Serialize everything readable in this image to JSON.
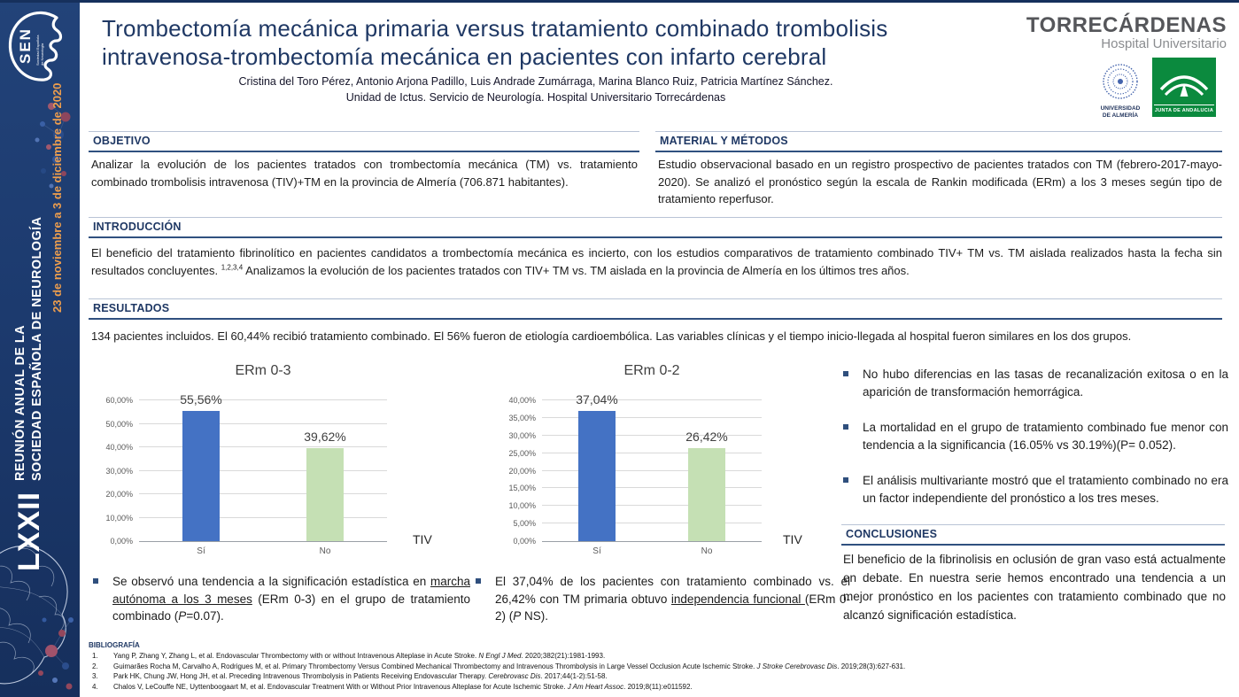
{
  "chart_data": [
    {
      "type": "bar",
      "title": "ERm 0-3",
      "categories": [
        "Sí",
        "No"
      ],
      "values": [
        55.56,
        39.62
      ],
      "value_labels": [
        "55,56%",
        "39,62%"
      ],
      "bar_colors": [
        "#4472C4",
        "#C5E0B4"
      ],
      "ylim": [
        0,
        60
      ],
      "ytick_labels": [
        "0,00%",
        "10,00%",
        "20,00%",
        "30,00%",
        "40,00%",
        "50,00%",
        "60,00%"
      ],
      "xlabel": "TIV",
      "grid": true,
      "legend": "none"
    },
    {
      "type": "bar",
      "title": "ERm 0-2",
      "categories": [
        "Sí",
        "No"
      ],
      "values": [
        37.04,
        26.42
      ],
      "value_labels": [
        "37,04%",
        "26,42%"
      ],
      "bar_colors": [
        "#4472C4",
        "#C5E0B4"
      ],
      "ylim": [
        0,
        40
      ],
      "ytick_labels": [
        "0,00%",
        "5,00%",
        "10,00%",
        "15,00%",
        "20,00%",
        "25,00%",
        "30,00%",
        "35,00%",
        "40,00%"
      ],
      "xlabel": "TIV",
      "grid": true,
      "legend": "none"
    }
  ],
  "sidebar": {
    "sen_acronym": "SEN",
    "sen_name_line1": "Sociedad Española",
    "sen_name_line2": "de Neurología",
    "event_numeral": "LXXII",
    "event_line1": "REUNIÓN ANUAL DE LA",
    "event_line2": "SOCIEDAD ESPAÑOLA DE NEUROLOGÍA",
    "event_dates": "23 de noviembre a 3 de diciembre de 2020",
    "colors": {
      "background": "#1d3c70",
      "dates_text": "#ee9e4d"
    }
  },
  "header": {
    "title_line1": "Trombectomía mecánica primaria versus tratamiento combinado trombolisis",
    "title_line2": "intravenosa-trombectomía mecánica en pacientes con infarto cerebral",
    "authors": "Cristina del Toro Pérez, Antonio Arjona Padillo, Luis Andrade Zumárraga, Marina Blanco Ruiz, Patricia Martínez Sánchez.",
    "affiliation": "Unidad de Ictus. Servicio de Neurología. Hospital Universitario Torrecárdenas",
    "brand_name": "TORRECÁRDENAS",
    "brand_subtitle": "Hospital Universitario",
    "ual_caption_line1": "UNIVERSIDAD",
    "ual_caption_line2": "DE ALMERÍA",
    "junta_caption": "JUNTA DE ANDALUCIA"
  },
  "sections": {
    "objetivo_title": "OBJETIVO",
    "objetivo_body": "Analizar la evolución de los pacientes tratados con trombectomía mecánica (TM) vs. tratamiento combinado trombolisis intravenosa (TIV)+TM en la provincia de Almería (706.871 habitantes).",
    "metodos_title": "MATERIAL Y MÉTODOS",
    "metodos_body": "Estudio observacional basado en un registro prospectivo de pacientes tratados con TM (febrero-2017-mayo-2020). Se analizó el pronóstico según la escala de Rankin modificada (ERm) a los 3 meses según tipo de tratamiento reperfusor.",
    "intro_title": "INTRODUCCIÓN",
    "intro_body_pre": "El beneficio del tratamiento fibrinolítico en pacientes candidatos a trombectomía mecánica es incierto, con los estudios comparativos de tratamiento combinado TIV+ TM vs. TM aislada realizados hasta la fecha sin resultados concluyentes. ",
    "intro_citation": "1,2,3,4",
    "intro_body_post": " Analizamos la evolución de los pacientes tratados con TIV+ TM vs. TM aislada en la provincia de Almería en los últimos tres años.",
    "resultados_title": "RESULTADOS",
    "resultados_body": "134 pacientes incluidos. El 60,44% recibió tratamiento combinado. El 56% fueron de etiología cardioembólica. Las variables clínicas y el tiempo inicio-llegada al hospital fueron similares en los dos grupos.",
    "conclusiones_title": "CONCLUSIONES",
    "conclusiones_body": "El beneficio de la fibrinolisis en oclusión de gran vaso está actualmente en debate. En nuestra serie hemos encontrado una tendencia a un mejor pronóstico en los pacientes con tratamiento combinado que no alcanzó significación estadística."
  },
  "findings": [
    "No hubo diferencias en las tasas de recanalización exitosa o en la aparición de transformación hemorrágica.",
    "La mortalidad en el grupo de tratamiento combinado fue menor con tendencia a la significancia (16.05% vs 30.19%)(P= 0.052).",
    "El análisis multivariante mostró que el tratamiento combinado no era un factor independiente del pronóstico a los tres meses."
  ],
  "chart_notes": {
    "note1": {
      "pre": "Se observó una tendencia a la significación estadística en ",
      "underline": "marcha autónoma a los 3 meses",
      "mid": " (ERm 0-3) en el grupo de tratamiento combinado (",
      "p": "P",
      "post": "=0.07)."
    },
    "note2": {
      "pre": "El 37,04% de los pacientes con tratamiento combinado vs. el 26,42% con TM primaria obtuvo ",
      "underline": "independencia funcional ",
      "mid": "(ERm 0-2) (",
      "p": "P",
      "post": " NS)."
    }
  },
  "bibliography": {
    "title": "BIBLIOGRAFÍA",
    "references": [
      {
        "num": "1.",
        "pre": "Yang P, Zhang Y, Zhang L, et al. Endovascular Thrombectomy with or without Intravenous Alteplase in Acute Stroke. ",
        "journal": "N Engl J Med",
        "post": ". 2020;382(21):1981-1993."
      },
      {
        "num": "2.",
        "pre": "Guimarães Rocha M, Carvalho A, Rodrigues M, et al. Primary Thrombectomy Versus Combined Mechanical Thrombectomy and Intravenous Thrombolysis in Large Vessel Occlusion Acute Ischemic Stroke. ",
        "journal": "J Stroke Cerebrovasc Dis",
        "post": ". 2019;28(3):627-631."
      },
      {
        "num": "3.",
        "pre": "Park HK, Chung JW, Hong JH, et al. Preceding Intravenous Thrombolysis in Patients Receiving Endovascular Therapy. ",
        "journal": "Cerebrovasc Dis",
        "post": ". 2017;44(1-2):51-58."
      },
      {
        "num": "4.",
        "pre": "Chalos V, LeCouffe NE, Uyttenboogaart M, et al. Endovascular Treatment With or Without Prior Intravenous Alteplase for Acute Ischemic Stroke. ",
        "journal": "J Am Heart Assoc",
        "post": ". 2019;8(11):e011592."
      }
    ]
  }
}
